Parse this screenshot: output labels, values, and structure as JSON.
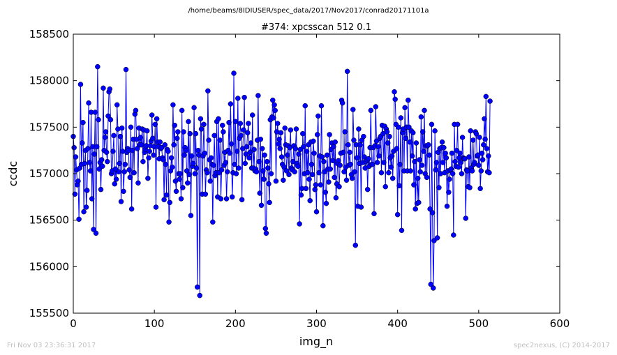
{
  "figure": {
    "suptitle": "/home/beams/8IDIUSER/spec_data/2017/Nov2017/conrad20171101a",
    "footer_left": "Fri Nov 03 23:36:31 2017",
    "footer_right": "spec2nexus, (C) 2014-2017"
  },
  "chart_data": {
    "type": "line",
    "title": "#374: xpcsscan 512 0.1",
    "xlabel": "img_n",
    "ylabel": "ccdc",
    "xlim": [
      0,
      600
    ],
    "ylim": [
      155500,
      158500
    ],
    "xticks": [
      0,
      100,
      200,
      300,
      400,
      500,
      600
    ],
    "yticks": [
      155500,
      156000,
      156500,
      157000,
      157500,
      158000,
      158500
    ],
    "grid": false,
    "marker": "circle",
    "color": "#0000ff",
    "series": [
      {
        "x_start": 0,
        "x_step": 1,
        "values": [
          157400,
          157280,
          156780,
          157180,
          157040,
          156880,
          156920,
          156510,
          157060,
          157960,
          157100,
          157330,
          157550,
          156590,
          157110,
          157250,
          156640,
          156820,
          157270,
          157760,
          157120,
          157030,
          157660,
          156730,
          157290,
          156400,
          157210,
          157660,
          156360,
          157290,
          158150,
          157580,
          157050,
          157120,
          156830,
          157150,
          157080,
          157920,
          157250,
          157390,
          157450,
          157230,
          157130,
          157620,
          157880,
          157910,
          157580,
          157000,
          157030,
          157240,
          157410,
          156890,
          157050,
          156940,
          157740,
          157480,
          157020,
          157110,
          157400,
          156700,
          157490,
          157240,
          156810,
          157020,
          157100,
          158120,
          157230,
          157270,
          157250,
          157040,
          156960,
          157500,
          156620,
          157250,
          157370,
          157010,
          157640,
          157680,
          157370,
          157270,
          156900,
          157490,
          157310,
          157390,
          157310,
          157480,
          157130,
          157470,
          157230,
          157260,
          157300,
          157460,
          156950,
          157170,
          157240,
          157300,
          157350,
          157630,
          157380,
          157200,
          157290,
          157530,
          156640,
          157590,
          157340,
          157290,
          157160,
          157340,
          157270,
          157280,
          157170,
          157150,
          156720,
          157310,
          157100,
          156770,
          157260,
          157240,
          156480,
          156690,
          157030,
          157170,
          157070,
          157740,
          157310,
          157520,
          156920,
          156810,
          157380,
          157450,
          157000,
          156940,
          157000,
          156730,
          157680,
          156850,
          157450,
          157200,
          157280,
          157250,
          157030,
          156900,
          157560,
          156990,
          157430,
          156550,
          157190,
          157080,
          157110,
          157710,
          157000,
          157430,
          157060,
          155780,
          157250,
          157200,
          155690,
          157590,
          157480,
          156780,
          157190,
          157530,
          157220,
          156780,
          157040,
          157010,
          157890,
          157360,
          157150,
          156920,
          157170,
          157100,
          156480,
          157090,
          157410,
          156980,
          157010,
          157560,
          156750,
          157590,
          157010,
          157360,
          156730,
          157040,
          157520,
          157450,
          157090,
          157230,
          157120,
          156730,
          157020,
          157250,
          157550,
          157220,
          157750,
          157320,
          156750,
          157010,
          158080,
          157100,
          157560,
          157000,
          157240,
          157810,
          157060,
          157380,
          157540,
          157410,
          156720,
          157270,
          157470,
          157820,
          157110,
          157210,
          157290,
          157440,
          157540,
          157170,
          157230,
          157330,
          157060,
          157630,
          157060,
          157260,
          157030,
          157050,
          157020,
          157360,
          157840,
          157130,
          156790,
          157370,
          156660,
          157270,
          157030,
          156940,
          157200,
          156410,
          156360,
          157130,
          157060,
          156890,
          156690,
          157580,
          157000,
          157610,
          157790,
          157600,
          157740,
          157680,
          156920,
          157450,
          157540,
          157320,
          157370,
          157270,
          157440,
          157180,
          157100,
          156930,
          157070,
          157490,
          157310,
          157030,
          157200,
          157300,
          156990,
          157280,
          157470,
          157060,
          157040,
          157130,
          157300,
          157020,
          157270,
          157480,
          157110,
          157080,
          157210,
          156460,
          157260,
          156770,
          156840,
          157430,
          157290,
          157000,
          157730,
          156840,
          157240,
          157010,
          157310,
          156940,
          156710,
          157340,
          157100,
          156990,
          157350,
          157220,
          156830,
          156880,
          156590,
          157420,
          157620,
          157010,
          157190,
          156880,
          157730,
          157180,
          156440,
          157130,
          157020,
          156800,
          156680,
          157200,
          157050,
          156910,
          157420,
          157050,
          157260,
          157330,
          157140,
          157290,
          156960,
          157340,
          156740,
          156890,
          157110,
          157140,
          156860,
          157090,
          157220,
          157790,
          157760,
          157230,
          157020,
          157450,
          157070,
          156930,
          158100,
          157310,
          157090,
          157230,
          157100,
          156990,
          156950,
          157690,
          157360,
          157020,
          156230,
          157310,
          157170,
          156650,
          157480,
          157110,
          157310,
          156640,
          157360,
          157120,
          157400,
          157180,
          157060,
          157130,
          157150,
          156830,
          157160,
          157080,
          157280,
          157680,
          157100,
          157100,
          157280,
          156570,
          157300,
          157720,
          157350,
          157120,
          157290,
          157190,
          157380,
          157400,
          157010,
          157520,
          157430,
          157120,
          157510,
          156860,
          157480,
          157450,
          157330,
          157010,
          157400,
          157170,
          157070,
          157190,
          156950,
          157240,
          157880,
          157800,
          157530,
          157270,
          156560,
          157500,
          156870,
          157100,
          157600,
          156390,
          157440,
          157480,
          157030,
          157710,
          157380,
          157500,
          157030,
          157790,
          157500,
          157340,
          157030,
          157460,
          157190,
          157440,
          156880,
          157130,
          156620,
          157330,
          156680,
          156950,
          156690,
          157150,
          157020,
          157610,
          157090,
          157450,
          157240,
          157680,
          157000,
          157300,
          156960,
          157300,
          157310,
          157200,
          156620,
          155810,
          157530,
          156580,
          155770,
          156280,
          157460,
          157040,
          157120,
          156310,
          157230,
          156850,
          157270,
          157000,
          157280,
          157340,
          157120,
          157280,
          157010,
          157220,
          157170,
          156650,
          157030,
          156800,
          156940,
          157040,
          157050,
          157220,
          157000,
          156340,
          157530,
          157130,
          157080,
          157250,
          157530,
          157070,
          157170,
          157220,
          157120,
          157000,
          157390,
          157170,
          157160,
          157160,
          156520,
          157040,
          157030,
          156860,
          157180,
          156850,
          157460,
          157060,
          157030,
          157360,
          157100,
          157120,
          157450,
          157430,
          157190,
          157200,
          157090,
          157390,
          156840,
          157030,
          157220,
          157150,
          157310,
          157590,
          157370,
          157830,
          157270,
          157020,
          157190,
          157010,
          157780
        ]
      }
    ]
  }
}
